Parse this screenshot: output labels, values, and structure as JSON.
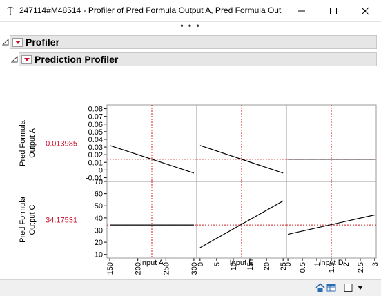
{
  "window": {
    "title": "247114#M48514 - Profiler of Pred Formula Output A, Pred Formula Out...",
    "more_dots": "• • •"
  },
  "outline": {
    "profiler_label": "Profiler",
    "prediction_profiler_label": "Prediction Profiler"
  },
  "rows": [
    {
      "label_line1": "Pred Formula",
      "label_line2": "Output A",
      "current_value": "0.013985",
      "y_ticks": [
        "0.08",
        "0.07",
        "0.06",
        "0.05",
        "0.04",
        "0.03",
        "0.02",
        "0.01",
        "0",
        "-0.01"
      ],
      "y_range": [
        -0.015,
        0.085
      ],
      "current_y": 0.013985
    },
    {
      "label_line1": "Pred Formula",
      "label_line2": "Output C",
      "current_value": "34.17531",
      "y_ticks": [
        "70",
        "60",
        "50",
        "40",
        "30",
        "20",
        "10"
      ],
      "y_range": [
        7,
        70
      ],
      "current_y": 34.17531
    }
  ],
  "columns": [
    {
      "x_label": "Input A",
      "current_value": "225",
      "current_x": 225,
      "x_range": [
        145,
        305
      ],
      "x_ticks": [
        "150",
        "200",
        "250",
        "300"
      ]
    },
    {
      "x_label": "Input E",
      "current_value": "12.5",
      "current_x": 12.5,
      "x_range": [
        -1,
        26
      ],
      "x_ticks": [
        "0",
        "5",
        "10",
        "15",
        "20",
        "25"
      ]
    },
    {
      "x_label": "Input D",
      "current_value": "1.5",
      "current_x": 1.5,
      "x_range": [
        -0.05,
        3.05
      ],
      "x_ticks": [
        "0",
        "0.5",
        "1",
        "1.5",
        "2",
        "2.5",
        "3"
      ]
    }
  ],
  "chart_data": {
    "type": "line",
    "cells": [
      {
        "row": 0,
        "col": 0,
        "x": [
          150,
          300
        ],
        "y": [
          0.032,
          -0.004
        ]
      },
      {
        "row": 0,
        "col": 1,
        "x": [
          0,
          25
        ],
        "y": [
          0.032,
          -0.004
        ]
      },
      {
        "row": 0,
        "col": 2,
        "x": [
          0,
          3
        ],
        "y": [
          0.014,
          0.014
        ]
      },
      {
        "row": 1,
        "col": 0,
        "x": [
          150,
          300
        ],
        "y": [
          34.2,
          34.2
        ]
      },
      {
        "row": 1,
        "col": 1,
        "x": [
          0,
          25
        ],
        "y": [
          15.5,
          54
        ]
      },
      {
        "row": 1,
        "col": 2,
        "x": [
          0,
          3
        ],
        "y": [
          26.5,
          42.5
        ]
      }
    ]
  },
  "colors": {
    "current_value": "#c8102e",
    "crosshair": "#cc2020",
    "trace": "#000000"
  }
}
